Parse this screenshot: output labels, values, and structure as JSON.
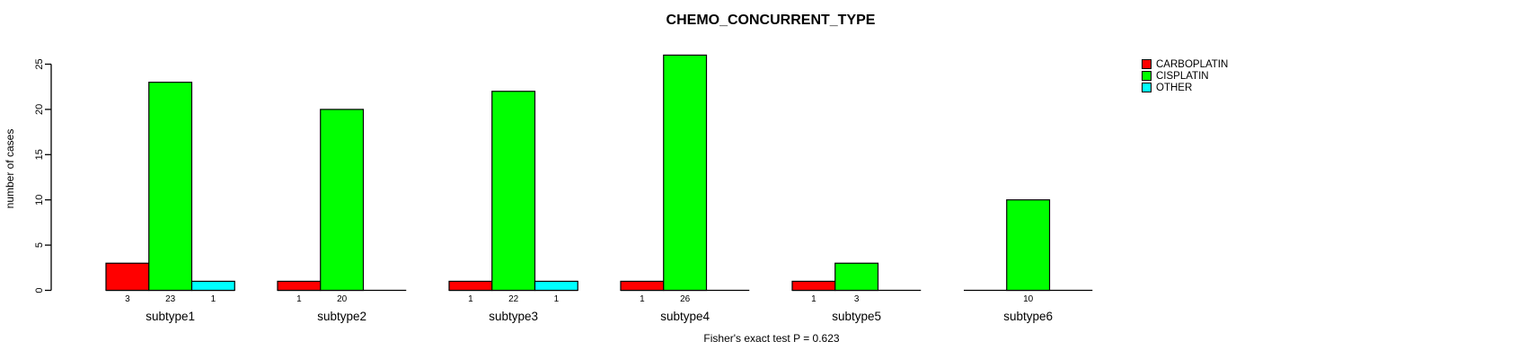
{
  "chart_data": {
    "type": "bar",
    "title": "CHEMO_CONCURRENT_TYPE",
    "ylabel": "number of cases",
    "xlabel": "",
    "annotation": "Fisher's exact test P = 0.623",
    "categories": [
      "subtype1",
      "subtype2",
      "subtype3",
      "subtype4",
      "subtype5",
      "subtype6"
    ],
    "series": [
      {
        "name": "CARBOPLATIN",
        "color": "#ff0000",
        "values": [
          3,
          1,
          1,
          1,
          1,
          0
        ]
      },
      {
        "name": "CISPLATIN",
        "color": "#00ff00",
        "values": [
          23,
          20,
          22,
          26,
          3,
          10
        ]
      },
      {
        "name": "OTHER",
        "color": "#00ffff",
        "values": [
          1,
          0,
          1,
          0,
          0,
          0
        ]
      }
    ],
    "yticks": [
      0,
      5,
      10,
      15,
      20,
      25
    ],
    "ylim": [
      0,
      26
    ],
    "grid": false,
    "legend_position": "right",
    "bar_border_color": "#000000",
    "show_value_labels": true
  }
}
